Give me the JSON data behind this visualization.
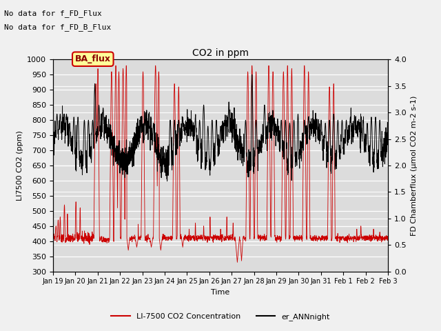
{
  "title": "CO2 in ppm",
  "xlabel": "Time",
  "ylabel_left": "LI7500 CO2 (ppm)",
  "ylabel_right": "FD Chamberflux (μmol CO2 m-2 s-1)",
  "ylim_left": [
    300,
    1000
  ],
  "ylim_right": [
    0.0,
    4.0
  ],
  "yticks_left": [
    300,
    350,
    400,
    450,
    500,
    550,
    600,
    650,
    700,
    750,
    800,
    850,
    900,
    950,
    1000
  ],
  "yticks_right": [
    0.0,
    0.5,
    1.0,
    1.5,
    2.0,
    2.5,
    3.0,
    3.5,
    4.0
  ],
  "xtick_labels": [
    "Jan 19",
    "Jan 20",
    "Jan 21",
    "Jan 22",
    "Jan 23",
    "Jan 24",
    "Jan 25",
    "Jan 26",
    "Jan 27",
    "Jan 28",
    "Jan 29",
    "Jan 30",
    "Jan 31",
    "Feb 1",
    "Feb 2",
    "Feb 3"
  ],
  "text_lines": [
    "No data for f_FD_Flux",
    "No data for f_FD_B_Flux"
  ],
  "legend_entries": [
    "LI-7500 CO2 Concentration",
    "er_ANNnight"
  ],
  "legend_colors": [
    "#cc0000",
    "#000000"
  ],
  "line_color_red": "#cc0000",
  "line_color_black": "#000000",
  "fig_bg_color": "#f0f0f0",
  "axes_bg_color": "#dcdcdc",
  "ba_flux_label": "BA_flux",
  "ba_flux_bg": "#ffff99",
  "ba_flux_border": "#cc0000"
}
